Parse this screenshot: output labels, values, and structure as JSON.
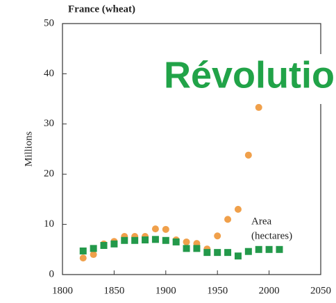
{
  "chart_data": {
    "type": "scatter",
    "title": "France (wheat)",
    "ylabel": "Millions",
    "annotations": [
      "Area",
      "(hectares)"
    ],
    "overlay_text": "Révolutio",
    "overlay_color": "#21a348",
    "x": [
      1820,
      1830,
      1840,
      1850,
      1860,
      1870,
      1880,
      1890,
      1900,
      1910,
      1920,
      1930,
      1940,
      1950,
      1960,
      1970,
      1980,
      1990,
      2000,
      2010
    ],
    "series": [
      {
        "color": "#f0a04b",
        "marker": "circle",
        "values": [
          3.3,
          4.0,
          6.1,
          6.6,
          7.6,
          7.6,
          7.6,
          9.1,
          9.0,
          6.9,
          6.5,
          6.2,
          5.1,
          7.7,
          11.0,
          13.0,
          23.8,
          33.3,
          null,
          null
        ]
      },
      {
        "color": "#23994a",
        "marker": "square",
        "values": [
          4.7,
          5.2,
          5.8,
          6.1,
          6.8,
          6.8,
          6.9,
          7.0,
          6.8,
          6.5,
          5.2,
          5.2,
          4.4,
          4.4,
          4.4,
          3.7,
          4.6,
          5.0,
          5.0,
          5.0
        ]
      }
    ],
    "xlim": [
      1800,
      2050
    ],
    "xticks": [
      1800,
      1850,
      1900,
      1950,
      2000,
      2050
    ],
    "ylim": [
      0,
      50
    ],
    "yticks": [
      0,
      10,
      20,
      30,
      40,
      50
    ]
  }
}
